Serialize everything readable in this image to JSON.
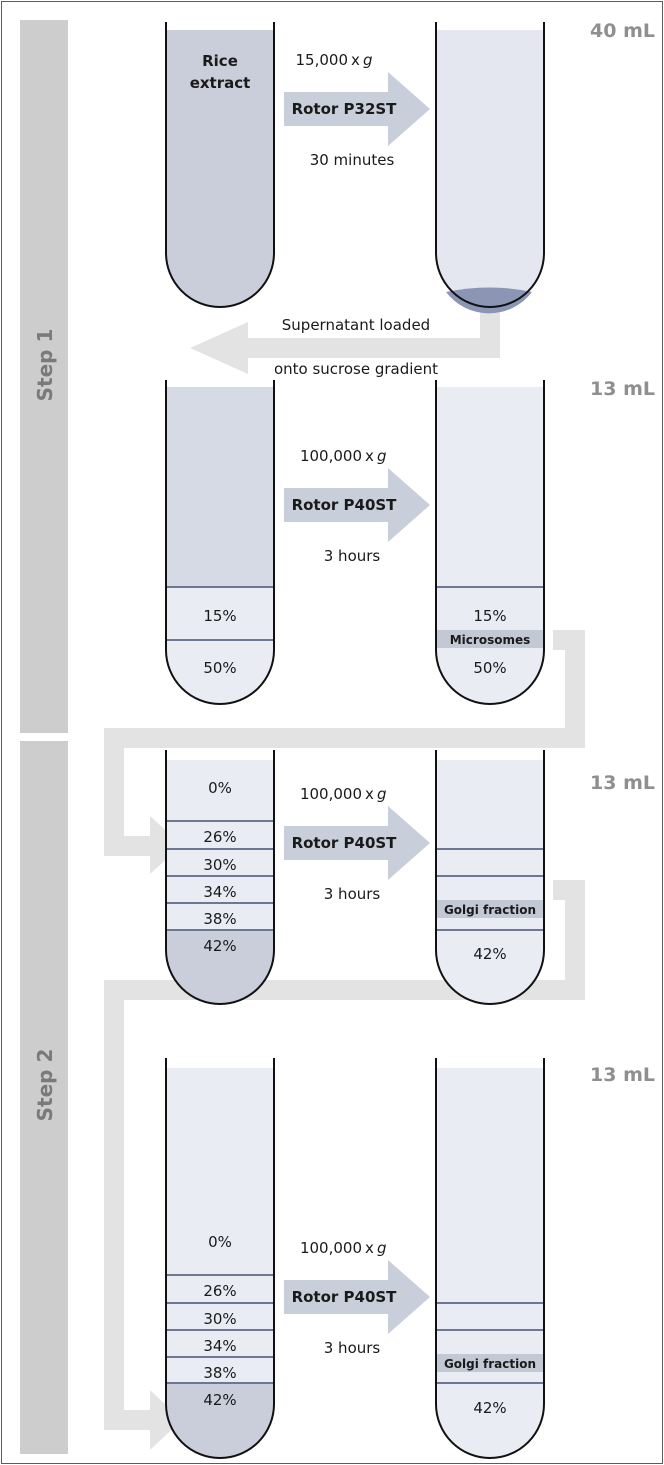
{
  "colors": {
    "tube_fill_dark": "#c9ceda",
    "tube_fill_light": "#e9ecf3",
    "arrow_fill": "#c8ceda",
    "band_fill": "#c3c8d5",
    "connector": "#e3e3e3",
    "step_bar": "#cdcdcd"
  },
  "steps": [
    "Step 1",
    "Step 2"
  ],
  "rows": [
    {
      "volume": "40 mL",
      "speed": "15,000",
      "g_symbol": "g",
      "rotor": "Rotor P32ST",
      "time": "30 minutes",
      "left_label_line1": "Rice",
      "left_label_line2": "extract"
    },
    {
      "volume": "13 mL",
      "speed": "100,000",
      "g_symbol": "g",
      "rotor": "Rotor P40ST",
      "time": "3 hours",
      "left_layers": [
        "15%",
        "50%"
      ],
      "right_layers": [
        "15%",
        "50%"
      ],
      "right_band": "Microsomes"
    },
    {
      "volume": "13 mL",
      "speed": "100,000",
      "g_symbol": "g",
      "rotor": "Rotor P40ST",
      "time": "3 hours",
      "left_layers": [
        "0%",
        "26%",
        "30%",
        "34%",
        "38%",
        "42%"
      ],
      "right_band": "Golgi fraction",
      "right_bottom": "42%"
    },
    {
      "volume": "13 mL",
      "speed": "100,000",
      "g_symbol": "g",
      "rotor": "Rotor P40ST",
      "time": "3 hours",
      "left_layers": [
        "0%",
        "26%",
        "30%",
        "34%",
        "38%",
        "42%"
      ],
      "right_band": "Golgi fraction",
      "right_bottom": "42%"
    }
  ],
  "transfer_note": {
    "line1": "Supernatant loaded",
    "line2": "onto sucrose gradient"
  }
}
